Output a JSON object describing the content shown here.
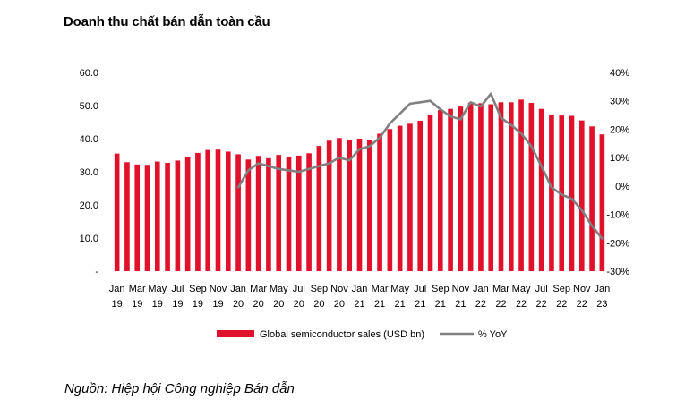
{
  "title": "Doanh thu chất bán dẫn toàn cầu",
  "source": "Nguồn: Hiệp hội Công nghiệp Bán dẫn",
  "colors": {
    "bars": "#e0112b",
    "line": "#808080"
  },
  "chart_data": {
    "type": "bar",
    "categories": [
      "Jan 19",
      "Feb 19",
      "Mar 19",
      "Apr 19",
      "May 19",
      "Jun 19",
      "Jul 19",
      "Aug 19",
      "Sep 19",
      "Oct 19",
      "Nov 19",
      "Dec 19",
      "Jan 20",
      "Feb 20",
      "Mar 20",
      "Apr 20",
      "May 20",
      "Jun 20",
      "Jul 20",
      "Aug 20",
      "Sep 20",
      "Oct 20",
      "Nov 20",
      "Dec 20",
      "Jan 21",
      "Feb 21",
      "Mar 21",
      "Apr 21",
      "May 21",
      "Jun 21",
      "Jul 21",
      "Aug 21",
      "Sep 21",
      "Oct 21",
      "Nov 21",
      "Dec 21",
      "Jan 22",
      "Feb 22",
      "Mar 22",
      "Apr 22",
      "May 22",
      "Jun 22",
      "Jul 22",
      "Aug 22",
      "Sep 22",
      "Oct 22",
      "Nov 22",
      "Dec 22",
      "Jan 23"
    ],
    "x_tick_labels": [
      {
        "month": "Jan",
        "year": "19"
      },
      {
        "month": "Mar",
        "year": "19"
      },
      {
        "month": "May",
        "year": "19"
      },
      {
        "month": "Jul",
        "year": "19"
      },
      {
        "month": "Sep",
        "year": "19"
      },
      {
        "month": "Nov",
        "year": "19"
      },
      {
        "month": "Jan",
        "year": "20"
      },
      {
        "month": "Mar",
        "year": "20"
      },
      {
        "month": "May",
        "year": "20"
      },
      {
        "month": "Jul",
        "year": "20"
      },
      {
        "month": "Sep",
        "year": "20"
      },
      {
        "month": "Nov",
        "year": "20"
      },
      {
        "month": "Jan",
        "year": "21"
      },
      {
        "month": "Mar",
        "year": "21"
      },
      {
        "month": "May",
        "year": "21"
      },
      {
        "month": "Jul",
        "year": "21"
      },
      {
        "month": "Sep",
        "year": "21"
      },
      {
        "month": "Nov",
        "year": "21"
      },
      {
        "month": "Jan",
        "year": "22"
      },
      {
        "month": "Mar",
        "year": "22"
      },
      {
        "month": "May",
        "year": "22"
      },
      {
        "month": "Jul",
        "year": "22"
      },
      {
        "month": "Sep",
        "year": "22"
      },
      {
        "month": "Nov",
        "year": "22"
      },
      {
        "month": "Jan",
        "year": "23"
      }
    ],
    "series": [
      {
        "name": "Global semiconductor sales (USD bn)",
        "type": "bar",
        "axis": "left",
        "values": [
          35.5,
          32.9,
          32.2,
          32.1,
          33.1,
          32.7,
          33.4,
          34.5,
          35.7,
          36.6,
          36.7,
          36.1,
          35.3,
          33.7,
          34.8,
          34.1,
          35.1,
          34.6,
          34.9,
          35.6,
          37.8,
          39.4,
          40.2,
          39.6,
          40.0,
          39.6,
          41.5,
          42.9,
          43.9,
          44.5,
          45.4,
          47.2,
          48.6,
          49.0,
          49.7,
          50.9,
          50.7,
          50.4,
          51.0,
          51.0,
          51.8,
          50.8,
          49.0,
          47.3,
          47.0,
          46.9,
          45.5,
          43.7,
          41.3
        ]
      },
      {
        "name": "% YoY",
        "type": "line",
        "axis": "right",
        "values": [
          null,
          null,
          null,
          null,
          null,
          null,
          null,
          null,
          null,
          null,
          null,
          null,
          -0.5,
          5.5,
          8.0,
          7.0,
          6.0,
          5.5,
          5.0,
          6.0,
          7.0,
          8.0,
          10.0,
          9.0,
          13.0,
          14.0,
          17.0,
          22.0,
          25.5,
          29.0,
          29.5,
          30.0,
          27.0,
          24.5,
          23.5,
          29.5,
          28.0,
          32.5,
          24.0,
          21.5,
          18.5,
          14.0,
          7.0,
          -0.5,
          -3.0,
          -4.5,
          -8.5,
          -14.0,
          -18.5
        ]
      }
    ],
    "left_axis": {
      "min": 0,
      "max": 60,
      "step": 10,
      "ticks": [
        "-",
        "10.0",
        "20.0",
        "30.0",
        "40.0",
        "50.0",
        "60.0"
      ]
    },
    "right_axis": {
      "min": -30,
      "max": 40,
      "step": 10,
      "ticks": [
        "-30%",
        "-20%",
        "-10%",
        "0%",
        "10%",
        "20%",
        "30%",
        "40%"
      ]
    },
    "legend": {
      "position": "bottom",
      "bar_label": "Global semiconductor sales (USD bn)",
      "line_label": "% YoY"
    }
  }
}
